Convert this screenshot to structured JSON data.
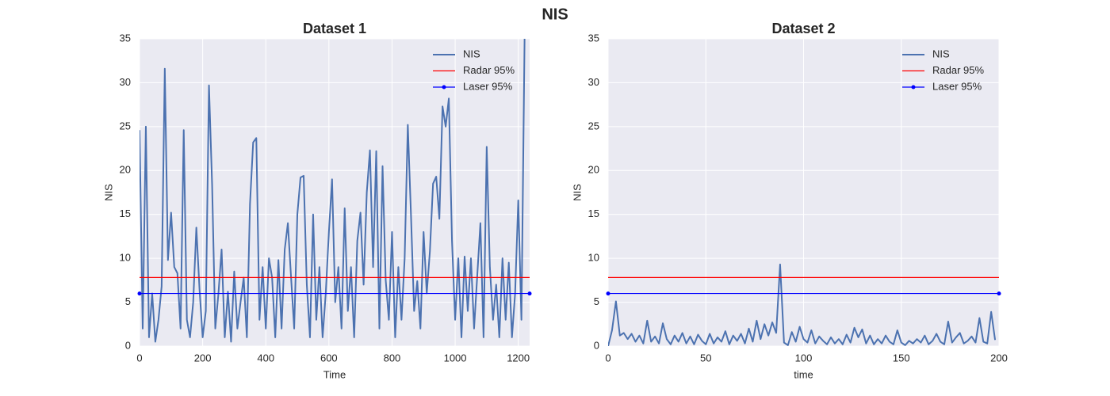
{
  "title": "NIS",
  "chart_data": [
    {
      "type": "line",
      "title": "Dataset 1",
      "xlabel": "Time",
      "ylabel": "NIS",
      "xlim": [
        0,
        1236
      ],
      "ylim": [
        0,
        35
      ],
      "xticks": [
        0,
        200,
        400,
        600,
        800,
        1000,
        1200
      ],
      "yticks": [
        0,
        5,
        10,
        15,
        20,
        25,
        30,
        35
      ],
      "grid": true,
      "legend": "upper right",
      "series": [
        {
          "name": "NIS",
          "color": "#4c72b0",
          "x": [
            0,
            10,
            20,
            30,
            40,
            50,
            60,
            70,
            80,
            90,
            100,
            110,
            120,
            130,
            140,
            150,
            160,
            170,
            180,
            190,
            200,
            210,
            220,
            230,
            240,
            250,
            260,
            270,
            280,
            290,
            300,
            310,
            320,
            330,
            340,
            350,
            360,
            370,
            380,
            390,
            400,
            410,
            420,
            430,
            440,
            450,
            460,
            470,
            480,
            490,
            500,
            510,
            520,
            530,
            540,
            550,
            560,
            570,
            580,
            590,
            600,
            610,
            620,
            630,
            640,
            650,
            660,
            670,
            680,
            690,
            700,
            710,
            720,
            730,
            740,
            750,
            760,
            770,
            780,
            790,
            800,
            810,
            820,
            830,
            840,
            850,
            860,
            870,
            880,
            890,
            900,
            910,
            920,
            930,
            940,
            950,
            960,
            970,
            980,
            990,
            1000,
            1010,
            1020,
            1030,
            1040,
            1050,
            1060,
            1070,
            1080,
            1090,
            1100,
            1110,
            1120,
            1130,
            1140,
            1150,
            1160,
            1170,
            1180,
            1190,
            1200,
            1210,
            1220
          ],
          "values": [
            24.6,
            2,
            25,
            1,
            6,
            0.5,
            3,
            6.8,
            31.6,
            9.8,
            15.2,
            9,
            8.3,
            2,
            24.6,
            3,
            1,
            5,
            13.5,
            6.5,
            1,
            4,
            29.7,
            18.3,
            2,
            6,
            11,
            1,
            6.2,
            0.5,
            8.5,
            2,
            5,
            7.8,
            1,
            16.2,
            23.2,
            23.7,
            3,
            9,
            2,
            10,
            7.8,
            1,
            9.8,
            2,
            11,
            14,
            7.9,
            2,
            15,
            19.2,
            19.4,
            7,
            1,
            15,
            3,
            9,
            1,
            6,
            13,
            19,
            5,
            9,
            2,
            15.7,
            4,
            9,
            1,
            12,
            15.2,
            7,
            17.5,
            22.3,
            9,
            22.2,
            2,
            20.5,
            7.5,
            3,
            13,
            1,
            9,
            3,
            10,
            25.2,
            15,
            4,
            7.4,
            2,
            13,
            6,
            10.8,
            18.5,
            19.3,
            14.5,
            27.3,
            25,
            28.2,
            12,
            3,
            10,
            1,
            10.2,
            4,
            10,
            2,
            8,
            14,
            1,
            22.7,
            9,
            3,
            7,
            1,
            10,
            3,
            9.5,
            1,
            6,
            16.6,
            3,
            35
          ]
        }
      ],
      "reference_lines": [
        {
          "name": "Radar 95%",
          "color": "#ff0000",
          "value": 7.815
        },
        {
          "name": "Laser 95%",
          "color": "#0000ff",
          "value": 5.991,
          "marker": true
        }
      ]
    },
    {
      "type": "line",
      "title": "Dataset 2",
      "xlabel": "time",
      "ylabel": "NIS",
      "xlim": [
        0,
        200
      ],
      "ylim": [
        0,
        35
      ],
      "xticks": [
        0,
        50,
        100,
        150,
        200
      ],
      "yticks": [
        0,
        5,
        10,
        15,
        20,
        25,
        30,
        35
      ],
      "grid": true,
      "legend": "upper right",
      "series": [
        {
          "name": "NIS",
          "color": "#4c72b0",
          "x": [
            0,
            2,
            4,
            6,
            8,
            10,
            12,
            14,
            16,
            18,
            20,
            22,
            24,
            26,
            28,
            30,
            32,
            34,
            36,
            38,
            40,
            42,
            44,
            46,
            48,
            50,
            52,
            54,
            56,
            58,
            60,
            62,
            64,
            66,
            68,
            70,
            72,
            74,
            76,
            78,
            80,
            82,
            84,
            86,
            88,
            90,
            92,
            94,
            96,
            98,
            100,
            102,
            104,
            106,
            108,
            110,
            112,
            114,
            116,
            118,
            120,
            122,
            124,
            126,
            128,
            130,
            132,
            134,
            136,
            138,
            140,
            142,
            144,
            146,
            148,
            150,
            152,
            154,
            156,
            158,
            160,
            162,
            164,
            166,
            168,
            170,
            172,
            174,
            176,
            178,
            180,
            182,
            184,
            186,
            188,
            190,
            192,
            194,
            196,
            198
          ],
          "values": [
            0,
            1.8,
            5.1,
            1.2,
            1.5,
            0.8,
            1.4,
            0.5,
            1.2,
            0.3,
            2.9,
            0.5,
            1.1,
            0.3,
            2.6,
            0.8,
            0.2,
            1.2,
            0.5,
            1.5,
            0.3,
            1.1,
            0.2,
            1.3,
            0.6,
            0.2,
            1.4,
            0.3,
            1.0,
            0.5,
            1.7,
            0.2,
            1.2,
            0.6,
            1.4,
            0.3,
            2.0,
            0.5,
            2.9,
            0.8,
            2.5,
            1.2,
            2.7,
            1.5,
            9.3,
            0.4,
            0.1,
            1.6,
            0.5,
            2.2,
            0.8,
            0.4,
            1.8,
            0.3,
            1.1,
            0.6,
            0.2,
            1.0,
            0.3,
            0.8,
            0.2,
            1.3,
            0.4,
            2.1,
            1.0,
            1.9,
            0.3,
            1.2,
            0.2,
            0.8,
            0.3,
            1.2,
            0.5,
            0.2,
            1.8,
            0.4,
            0.1,
            0.6,
            0.3,
            0.8,
            0.4,
            1.2,
            0.2,
            0.6,
            1.4,
            0.5,
            0.2,
            2.8,
            0.4,
            1.0,
            1.5,
            0.3,
            0.6,
            1.1,
            0.4,
            3.2,
            0.5,
            0.3,
            3.9,
            0.7
          ]
        }
      ],
      "reference_lines": [
        {
          "name": "Radar 95%",
          "color": "#ff0000",
          "value": 7.815
        },
        {
          "name": "Laser 95%",
          "color": "#0000ff",
          "value": 5.991,
          "marker": true
        }
      ]
    }
  ]
}
